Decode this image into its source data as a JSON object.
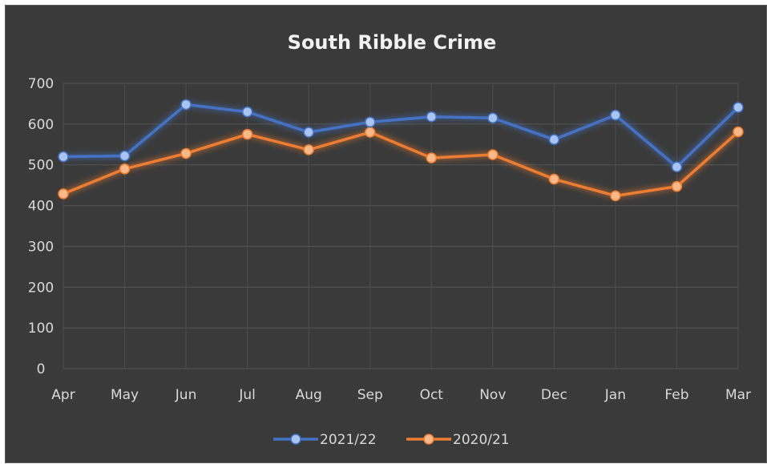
{
  "chart_data": {
    "type": "line",
    "title": "South Ribble Crime",
    "xlabel": "",
    "ylabel": "",
    "categories": [
      "Apr",
      "May",
      "Jun",
      "Jul",
      "Aug",
      "Sep",
      "Oct",
      "Nov",
      "Dec",
      "Jan",
      "Feb",
      "Mar"
    ],
    "ylim": [
      0,
      700
    ],
    "yticks": [
      0,
      100,
      200,
      300,
      400,
      500,
      600,
      700
    ],
    "grid": true,
    "legend_position": "bottom",
    "series": [
      {
        "name": "2021/22",
        "color": "#4472c4",
        "marker_color": "#a9c4f0",
        "values": [
          520,
          522,
          648,
          630,
          580,
          605,
          618,
          615,
          562,
          622,
          495,
          641
        ]
      },
      {
        "name": "2020/21",
        "color": "#ed7d31",
        "marker_color": "#f8b98a",
        "values": [
          429,
          490,
          528,
          575,
          537,
          580,
          517,
          525,
          465,
          424,
          447,
          581
        ]
      }
    ]
  }
}
